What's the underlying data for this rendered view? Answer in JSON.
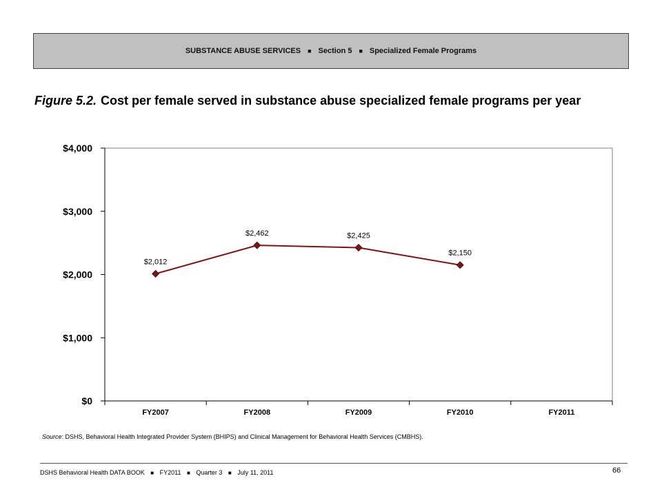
{
  "header": {
    "segments": [
      "SUBSTANCE ABUSE SERVICES",
      "Section 5",
      "Specialized Female Programs"
    ],
    "separator": "■"
  },
  "figure": {
    "label": "Figure 5.2.",
    "title": "Cost per female served in substance abuse specialized female programs per year"
  },
  "chart_data": {
    "type": "line",
    "title": "",
    "xlabel": "",
    "ylabel": "",
    "categories": [
      "FY2007",
      "FY2008",
      "FY2009",
      "FY2010",
      "FY2011"
    ],
    "series": [
      {
        "values": [
          2012,
          2462,
          2425,
          2150,
          null
        ],
        "labels": [
          "$2,012",
          "$2,462",
          "$2,425",
          "$2,150",
          ""
        ]
      }
    ],
    "ylim": [
      0,
      4000
    ],
    "yticks": [
      0,
      1000,
      2000,
      3000,
      4000
    ],
    "ytick_labels": [
      "$0",
      "$1,000",
      "$2,000",
      "$3,000",
      "$4,000"
    ],
    "grid": false,
    "colors": {
      "line": "#7b1416",
      "marker": "#7b1416",
      "axis": "#000000"
    }
  },
  "source": {
    "label": "Source",
    "text": ": DSHS, Behavioral Health Integrated Provider System (BHIPS) and Clinical Management for Behavioral Health Services (CMBHS)."
  },
  "footer": {
    "segments": [
      "DSHS Behavioral Health DATA BOOK",
      "FY2011",
      "Quarter 3",
      "July 11, 2011"
    ],
    "separator": "■",
    "page": "66"
  }
}
